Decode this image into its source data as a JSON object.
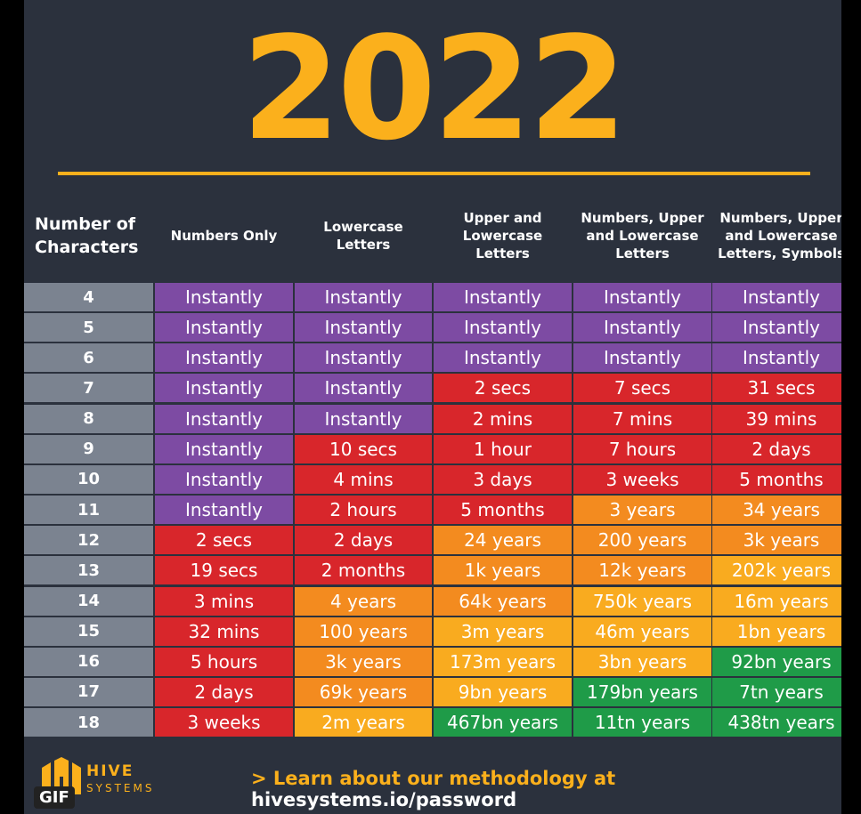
{
  "title": "2022",
  "table": {
    "headers": [
      "Number of Characters",
      "Numbers Only",
      "Lowercase Letters",
      "Upper and Lowercase Letters",
      "Numbers, Upper and Lowercase Letters",
      "Numbers, Upper and Lowercase Letters, Symbols"
    ],
    "rows": [
      [
        "4",
        "Instantly",
        "Instantly",
        "Instantly",
        "Instantly",
        "Instantly"
      ],
      [
        "5",
        "Instantly",
        "Instantly",
        "Instantly",
        "Instantly",
        "Instantly"
      ],
      [
        "6",
        "Instantly",
        "Instantly",
        "Instantly",
        "Instantly",
        "Instantly"
      ],
      [
        "7",
        "Instantly",
        "Instantly",
        "2 secs",
        "7 secs",
        "31 secs"
      ],
      [
        "8",
        "Instantly",
        "Instantly",
        "2 mins",
        "7 mins",
        "39 mins"
      ],
      [
        "9",
        "Instantly",
        "10 secs",
        "1 hour",
        "7 hours",
        "2 days"
      ],
      [
        "10",
        "Instantly",
        "4 mins",
        "3 days",
        "3 weeks",
        "5 months"
      ],
      [
        "11",
        "Instantly",
        "2 hours",
        "5 months",
        "3 years",
        "34 years"
      ],
      [
        "12",
        "2 secs",
        "2 days",
        "24 years",
        "200 years",
        "3k years"
      ],
      [
        "13",
        "19 secs",
        "2 months",
        "1k years",
        "12k years",
        "202k years"
      ],
      [
        "14",
        "3 mins",
        "4 years",
        "64k years",
        "750k years",
        "16m years"
      ],
      [
        "15",
        "32 mins",
        "100 years",
        "3m years",
        "46m years",
        "1bn years"
      ],
      [
        "16",
        "5 hours",
        "3k years",
        "173m years",
        "3bn years",
        "92bn years"
      ],
      [
        "17",
        "2 days",
        "69k years",
        "9bn years",
        "179bn years",
        "7tn years"
      ],
      [
        "18",
        "3 weeks",
        "2m years",
        "467bn years",
        "11tn years",
        "438tn years"
      ]
    ],
    "row_colors": [
      [
        "#7d4ba3",
        "#7d4ba3",
        "#7d4ba3",
        "#7d4ba3",
        "#7d4ba3"
      ],
      [
        "#7d4ba3",
        "#7d4ba3",
        "#7d4ba3",
        "#7d4ba3",
        "#7d4ba3"
      ],
      [
        "#7d4ba3",
        "#7d4ba3",
        "#7d4ba3",
        "#7d4ba3",
        "#7d4ba3"
      ],
      [
        "#7d4ba3",
        "#7d4ba3",
        "#d8262b",
        "#d8262b",
        "#d8262b"
      ],
      [
        "#7d4ba3",
        "#7d4ba3",
        "#d8262b",
        "#d8262b",
        "#d8262b"
      ],
      [
        "#7d4ba3",
        "#d8262b",
        "#d8262b",
        "#d8262b",
        "#d8262b"
      ],
      [
        "#7d4ba3",
        "#d8262b",
        "#d8262b",
        "#d8262b",
        "#d8262b"
      ],
      [
        "#7d4ba3",
        "#d8262b",
        "#d8262b",
        "#f38b1f",
        "#f38b1f"
      ],
      [
        "#d8262b",
        "#d8262b",
        "#f38b1f",
        "#f38b1f",
        "#f38b1f"
      ],
      [
        "#d8262b",
        "#d8262b",
        "#f38b1f",
        "#f38b1f",
        "#f9ab1f"
      ],
      [
        "#d8262b",
        "#f38b1f",
        "#f38b1f",
        "#f9ab1f",
        "#f9ab1f"
      ],
      [
        "#d8262b",
        "#f38b1f",
        "#f9ab1f",
        "#f9ab1f",
        "#f9ab1f"
      ],
      [
        "#d8262b",
        "#f38b1f",
        "#f9ab1f",
        "#f9ab1f",
        "#1f9b48"
      ],
      [
        "#d8262b",
        "#f38b1f",
        "#f9ab1f",
        "#1f9b48",
        "#1f9b48"
      ],
      [
        "#d8262b",
        "#f9ab1f",
        "#1f9b48",
        "#1f9b48",
        "#1f9b48"
      ]
    ]
  },
  "footer": {
    "logo_name": "HIVE",
    "logo_sub": "SYSTEMS",
    "text": "> Learn about our methodology at",
    "link": "hivesystems.io/password"
  },
  "badge": "GIF"
}
